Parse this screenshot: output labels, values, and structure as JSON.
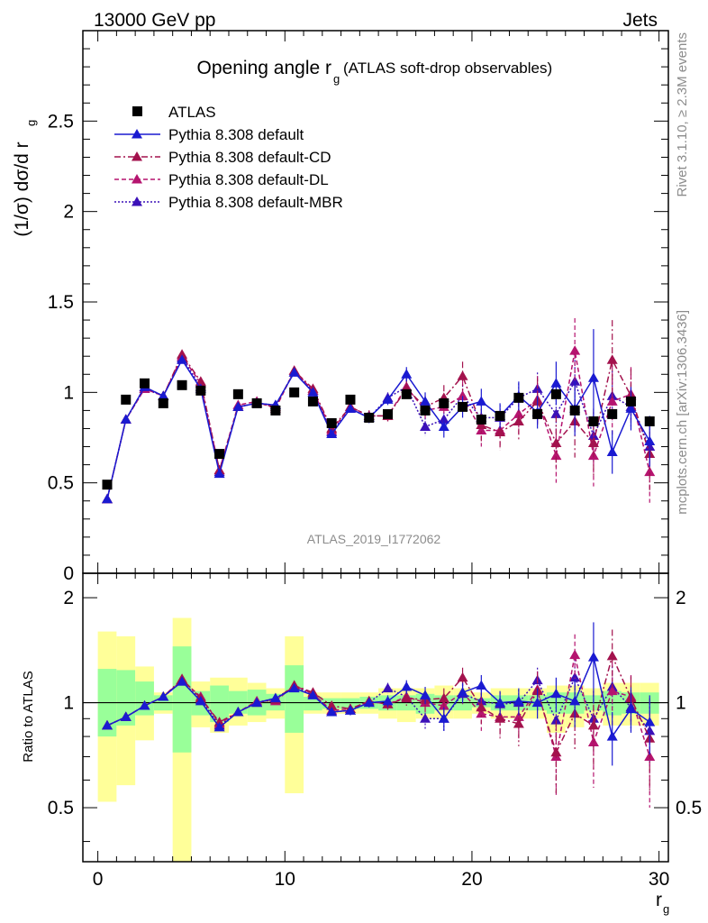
{
  "header": {
    "left": "13000 GeV pp",
    "right": "Jets"
  },
  "side_labels": {
    "rivet": "Rivet 3.1.10, ≥ 2.3M events",
    "mcplots": "mcplots.cern.ch [arXiv:1306.3436]"
  },
  "chart_data": [
    {
      "type": "scatter",
      "panel": "main",
      "title_main": "Opening angle r",
      "title_sub": "g",
      "title_paren": "(ATLAS soft-drop observables)",
      "ylabel": "(1/σ) dσ/d r",
      "ylabel_sub": "g",
      "watermark": "ATLAS_2019_I1772062",
      "xlim": [
        -0.8,
        30.5
      ],
      "ylim": [
        0,
        3.0
      ],
      "y_ticks": [
        0,
        0.5,
        1,
        1.5,
        2,
        2.5
      ],
      "y_tick_labels": [
        "0",
        "0.5",
        "1",
        "1.5",
        "2",
        "2.5"
      ],
      "legend_position": "top-left",
      "x": [
        0.5,
        1.5,
        2.5,
        3.5,
        4.5,
        5.5,
        6.5,
        7.5,
        8.5,
        9.5,
        10.5,
        11.5,
        12.5,
        13.5,
        14.5,
        15.5,
        16.5,
        17.5,
        18.5,
        19.5,
        20.5,
        21.5,
        22.5,
        23.5,
        24.5,
        25.5,
        26.5,
        27.5,
        28.5,
        29.5
      ],
      "series": [
        {
          "name": "ATLAS",
          "style": "data",
          "color": "#000000",
          "values": [
            0.49,
            0.96,
            1.05,
            0.94,
            1.04,
            1.01,
            0.66,
            0.99,
            0.94,
            0.9,
            1.0,
            0.95,
            0.83,
            0.96,
            0.86,
            0.88,
            0.99,
            0.9,
            0.94,
            0.92,
            0.85,
            0.87,
            0.97,
            0.88,
            0.99,
            0.9,
            0.84,
            0.88,
            0.95,
            0.84
          ]
        },
        {
          "name": "Pythia 8.308 default",
          "style": "solid",
          "color": "#1a1ad1",
          "values": [
            0.41,
            0.85,
            1.03,
            0.98,
            1.18,
            1.02,
            0.55,
            0.92,
            0.94,
            0.93,
            1.11,
            1.0,
            0.77,
            0.91,
            0.86,
            0.96,
            1.1,
            0.95,
            0.81,
            0.92,
            0.95,
            0.87,
            0.98,
            0.89,
            1.05,
            0.91,
            1.08,
            0.67,
            0.91,
            0.73
          ],
          "errors": [
            0,
            0,
            0,
            0,
            0,
            0,
            0,
            0,
            0,
            0,
            0,
            0,
            0.02,
            0.02,
            0.03,
            0.03,
            0.04,
            0.05,
            0.06,
            0.06,
            0.07,
            0.07,
            0.08,
            0.09,
            0.12,
            0.15,
            0.27,
            0.12,
            0.12,
            0.14
          ]
        },
        {
          "name": "Pythia 8.308 default-CD",
          "style": "dashdot",
          "color": "#a3124d",
          "values": [
            0.41,
            0.85,
            1.03,
            0.98,
            1.21,
            1.06,
            0.57,
            0.92,
            0.94,
            0.92,
            1.12,
            1.02,
            0.8,
            0.92,
            0.87,
            0.87,
            1.02,
            0.92,
            0.97,
            1.09,
            0.82,
            0.78,
            0.84,
            0.95,
            0.72,
            0.84,
            0.72,
            1.18,
            0.98,
            0.66
          ],
          "errors": [
            0,
            0,
            0,
            0,
            0,
            0,
            0,
            0,
            0,
            0,
            0,
            0,
            0.02,
            0.02,
            0.03,
            0.03,
            0.05,
            0.06,
            0.07,
            0.08,
            0.09,
            0.1,
            0.11,
            0.13,
            0.15,
            0.2,
            0.18,
            0.22,
            0.15,
            0.2
          ]
        },
        {
          "name": "Pythia 8.308 default-DL",
          "style": "dashed",
          "color": "#b5146f",
          "values": [
            0.41,
            0.85,
            1.02,
            0.98,
            1.2,
            1.05,
            0.57,
            0.93,
            0.95,
            0.91,
            1.12,
            1.01,
            0.79,
            0.92,
            0.87,
            0.87,
            1.03,
            0.9,
            0.92,
            0.98,
            0.79,
            0.79,
            0.88,
            0.96,
            0.65,
            1.23,
            0.65,
            0.95,
            0.99,
            0.56
          ],
          "errors": [
            0,
            0,
            0,
            0,
            0,
            0,
            0,
            0,
            0,
            0,
            0,
            0,
            0.02,
            0.02,
            0.03,
            0.03,
            0.05,
            0.06,
            0.07,
            0.08,
            0.09,
            0.1,
            0.11,
            0.13,
            0.15,
            0.18,
            0.17,
            0.2,
            0.15,
            0.17
          ]
        },
        {
          "name": "Pythia 8.308 default-MBR",
          "style": "dotted",
          "color": "#3b10b8",
          "values": [
            0.41,
            0.85,
            1.02,
            0.98,
            1.19,
            1.03,
            0.56,
            0.92,
            0.94,
            0.93,
            1.11,
            1.01,
            0.78,
            0.91,
            0.86,
            0.97,
            1.03,
            0.81,
            0.85,
            0.98,
            0.86,
            0.86,
            0.97,
            1.02,
            0.88,
            1.06,
            0.76,
            0.98,
            0.92,
            0.7
          ],
          "errors": [
            0,
            0,
            0,
            0,
            0,
            0,
            0,
            0,
            0,
            0,
            0,
            0,
            0.02,
            0.02,
            0.03,
            0.03,
            0.04,
            0.05,
            0.06,
            0.06,
            0.07,
            0.07,
            0.08,
            0.09,
            0.12,
            0.14,
            0.15,
            0.14,
            0.12,
            0.14
          ]
        }
      ]
    },
    {
      "type": "scatter",
      "panel": "ratio",
      "ylabel": "Ratio to ATLAS",
      "xlabel": "r",
      "xlabel_sub": "g",
      "xlim": [
        -0.8,
        30.5
      ],
      "ylim": [
        0.35,
        2.35
      ],
      "log_y": true,
      "x_ticks": [
        0,
        10,
        20,
        30
      ],
      "x_tick_labels": [
        "0",
        "10",
        "20",
        "30"
      ],
      "y_ticks": [
        0.5,
        1,
        2
      ],
      "y_tick_labels": [
        "0.5",
        "1",
        "2"
      ],
      "band_edges": [
        0,
        1,
        2,
        3,
        4,
        5,
        6,
        7,
        8,
        9,
        10,
        11,
        12,
        13,
        14,
        15,
        16,
        17,
        18,
        19,
        20,
        21,
        22,
        23,
        24,
        25,
        26,
        27,
        28,
        29,
        30
      ],
      "band_inner": [
        [
          0.8,
          1.25
        ],
        [
          0.86,
          1.24
        ],
        [
          0.92,
          1.15
        ],
        [
          0.95,
          1.05
        ],
        [
          0.72,
          1.45
        ],
        [
          0.92,
          1.08
        ],
        [
          0.88,
          1.12
        ],
        [
          0.93,
          1.08
        ],
        [
          0.92,
          1.09
        ],
        [
          0.95,
          1.06
        ],
        [
          0.82,
          1.28
        ],
        [
          0.95,
          1.04
        ],
        [
          0.96,
          1.03
        ],
        [
          0.96,
          1.03
        ],
        [
          0.96,
          1.04
        ],
        [
          0.95,
          1.05
        ],
        [
          0.95,
          1.05
        ],
        [
          0.93,
          1.06
        ],
        [
          0.95,
          1.05
        ],
        [
          0.95,
          1.05
        ],
        [
          0.97,
          1.03
        ],
        [
          0.95,
          1.05
        ],
        [
          0.95,
          1.05
        ],
        [
          0.95,
          1.05
        ],
        [
          0.93,
          1.07
        ],
        [
          0.93,
          1.07
        ],
        [
          0.95,
          1.05
        ],
        [
          0.92,
          1.08
        ],
        [
          0.93,
          1.07
        ],
        [
          0.93,
          1.07
        ]
      ],
      "band_outer": [
        [
          0.52,
          1.6
        ],
        [
          0.58,
          1.55
        ],
        [
          0.78,
          1.27
        ],
        [
          0.93,
          1.07
        ],
        [
          0.3,
          1.75
        ],
        [
          0.85,
          1.15
        ],
        [
          0.82,
          1.18
        ],
        [
          0.86,
          1.18
        ],
        [
          0.88,
          1.14
        ],
        [
          0.9,
          1.1
        ],
        [
          0.55,
          1.55
        ],
        [
          0.93,
          1.07
        ],
        [
          0.93,
          1.07
        ],
        [
          0.93,
          1.07
        ],
        [
          0.93,
          1.07
        ],
        [
          0.9,
          1.1
        ],
        [
          0.88,
          1.1
        ],
        [
          0.9,
          1.1
        ],
        [
          0.9,
          1.12
        ],
        [
          0.9,
          1.1
        ],
        [
          0.93,
          1.07
        ],
        [
          0.9,
          1.1
        ],
        [
          0.9,
          1.1
        ],
        [
          0.9,
          1.1
        ],
        [
          0.82,
          1.12
        ],
        [
          0.85,
          1.12
        ],
        [
          0.9,
          1.1
        ],
        [
          0.86,
          1.14
        ],
        [
          0.86,
          1.14
        ],
        [
          0.86,
          1.14
        ]
      ],
      "series": [
        {
          "name": "Pythia 8.308 default",
          "style": "solid",
          "color": "#1a1ad1",
          "values": [
            0.86,
            0.91,
            0.98,
            1.04,
            1.15,
            1.01,
            0.85,
            0.94,
            1.0,
            1.03,
            1.1,
            1.05,
            0.94,
            0.95,
            1.0,
            1.01,
            1.11,
            1.05,
            0.9,
            1.07,
            1.12,
            1.0,
            1.01,
            1.0,
            1.06,
            1.01,
            1.35,
            0.8,
            0.96,
            0.88
          ],
          "errors": [
            0,
            0,
            0,
            0,
            0,
            0,
            0,
            0,
            0,
            0,
            0,
            0,
            0.02,
            0.03,
            0.03,
            0.04,
            0.05,
            0.06,
            0.07,
            0.07,
            0.08,
            0.08,
            0.09,
            0.1,
            0.12,
            0.16,
            0.35,
            0.14,
            0.14,
            0.17
          ]
        },
        {
          "name": "Pythia 8.308 default-CD",
          "style": "dashdot",
          "color": "#a3124d",
          "values": [
            0.86,
            0.91,
            0.98,
            1.04,
            1.17,
            1.03,
            0.88,
            0.94,
            1.0,
            1.02,
            1.12,
            1.07,
            0.98,
            0.96,
            1.01,
            0.99,
            1.03,
            1.02,
            1.03,
            1.18,
            0.97,
            0.9,
            0.87,
            1.08,
            0.72,
            0.93,
            0.86,
            1.36,
            1.03,
            0.79
          ],
          "errors": [
            0,
            0,
            0,
            0,
            0,
            0,
            0,
            0,
            0,
            0,
            0,
            0,
            0.02,
            0.03,
            0.03,
            0.04,
            0.05,
            0.06,
            0.07,
            0.08,
            0.1,
            0.11,
            0.12,
            0.14,
            0.17,
            0.2,
            0.22,
            0.26,
            0.16,
            0.24
          ]
        },
        {
          "name": "Pythia 8.308 default-DL",
          "style": "dashed",
          "color": "#b5146f",
          "values": [
            0.86,
            0.91,
            0.98,
            1.04,
            1.16,
            1.04,
            0.87,
            0.94,
            1.01,
            1.01,
            1.12,
            1.06,
            0.95,
            0.96,
            1.01,
            0.99,
            1.04,
            1.0,
            0.98,
            1.07,
            0.93,
            0.91,
            0.91,
            1.09,
            0.7,
            1.37,
            0.77,
            1.08,
            1.04,
            0.7
          ],
          "errors": [
            0,
            0,
            0,
            0,
            0,
            0,
            0,
            0,
            0,
            0,
            0,
            0,
            0.02,
            0.03,
            0.03,
            0.04,
            0.05,
            0.06,
            0.07,
            0.08,
            0.1,
            0.11,
            0.12,
            0.14,
            0.16,
            0.2,
            0.2,
            0.22,
            0.16,
            0.2
          ]
        },
        {
          "name": "Pythia 8.308 default-MBR",
          "style": "dotted",
          "color": "#3b10b8",
          "values": [
            0.86,
            0.91,
            0.98,
            1.04,
            1.15,
            1.02,
            0.86,
            0.94,
            1.0,
            1.03,
            1.11,
            1.06,
            0.94,
            0.95,
            1.0,
            1.1,
            1.04,
            0.9,
            0.9,
            1.06,
            1.01,
            0.99,
            1.0,
            1.16,
            0.89,
            1.18,
            0.9,
            1.11,
            0.97,
            0.83
          ],
          "errors": [
            0,
            0,
            0,
            0,
            0,
            0,
            0,
            0,
            0,
            0,
            0,
            0,
            0.02,
            0.03,
            0.03,
            0.04,
            0.05,
            0.06,
            0.07,
            0.07,
            0.08,
            0.08,
            0.09,
            0.1,
            0.13,
            0.15,
            0.18,
            0.16,
            0.14,
            0.17
          ]
        }
      ]
    }
  ]
}
